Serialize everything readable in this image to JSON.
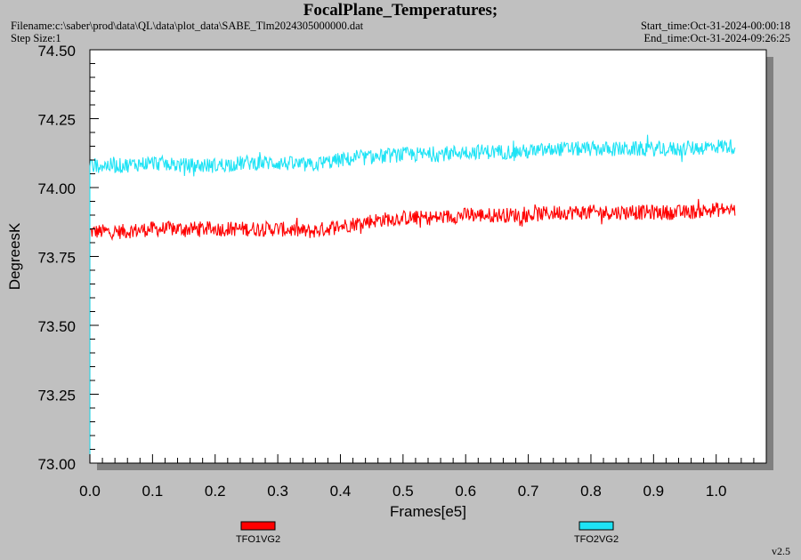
{
  "header": {
    "title": "FocalPlane_Temperatures;",
    "filename": "Filename:c:\\saber\\prod\\data\\QL\\data\\plot_data\\SABE_Tlm2024305000000.dat",
    "step_size": "Step Size:1",
    "start_time": "Start_time:Oct-31-2024-00:00:18",
    "end_time": "End_time:Oct-31-2024-09:26:25"
  },
  "version": "v2.5",
  "colors": {
    "background": "#c0c0c0",
    "plot_bg": "#ffffff",
    "shadow": "#808080",
    "series1": "#ff0000",
    "series2": "#1ee3f5"
  },
  "chart_data": {
    "type": "line",
    "xlabel": "Frames[e5]",
    "ylabel": "DegreesK",
    "xlim": [
      0.0,
      1.08
    ],
    "ylim": [
      73.0,
      74.5
    ],
    "xticks": [
      "0.0",
      "0.1",
      "0.2",
      "0.3",
      "0.4",
      "0.5",
      "0.6",
      "0.7",
      "0.8",
      "0.9",
      "1.0"
    ],
    "yticks": [
      "73.00",
      "73.25",
      "73.50",
      "73.75",
      "74.00",
      "74.25",
      "74.50"
    ],
    "legend_position": "bottom",
    "series": [
      {
        "name": "TFO1VG2",
        "color": "#ff0000",
        "x": [
          0.0,
          0.05,
          0.1,
          0.15,
          0.2,
          0.25,
          0.3,
          0.35,
          0.4,
          0.45,
          0.5,
          0.55,
          0.6,
          0.65,
          0.7,
          0.75,
          0.8,
          0.85,
          0.9,
          0.95,
          1.0,
          1.03
        ],
        "y": [
          73.84,
          73.84,
          73.85,
          73.85,
          73.85,
          73.85,
          73.85,
          73.84,
          73.86,
          73.88,
          73.89,
          73.89,
          73.9,
          73.9,
          73.9,
          73.91,
          73.91,
          73.91,
          73.91,
          73.91,
          73.92,
          73.92
        ]
      },
      {
        "name": "TFO2VG2",
        "color": "#1ee3f5",
        "x": [
          0.0,
          0.05,
          0.1,
          0.15,
          0.2,
          0.25,
          0.3,
          0.35,
          0.4,
          0.45,
          0.5,
          0.55,
          0.6,
          0.65,
          0.7,
          0.75,
          0.8,
          0.85,
          0.9,
          0.95,
          1.0,
          1.03
        ],
        "y": [
          74.08,
          74.08,
          74.09,
          74.08,
          74.08,
          74.09,
          74.09,
          74.08,
          74.1,
          74.11,
          74.12,
          74.12,
          74.13,
          74.13,
          74.13,
          74.14,
          74.14,
          74.14,
          74.14,
          74.14,
          74.15,
          74.15
        ]
      }
    ]
  }
}
